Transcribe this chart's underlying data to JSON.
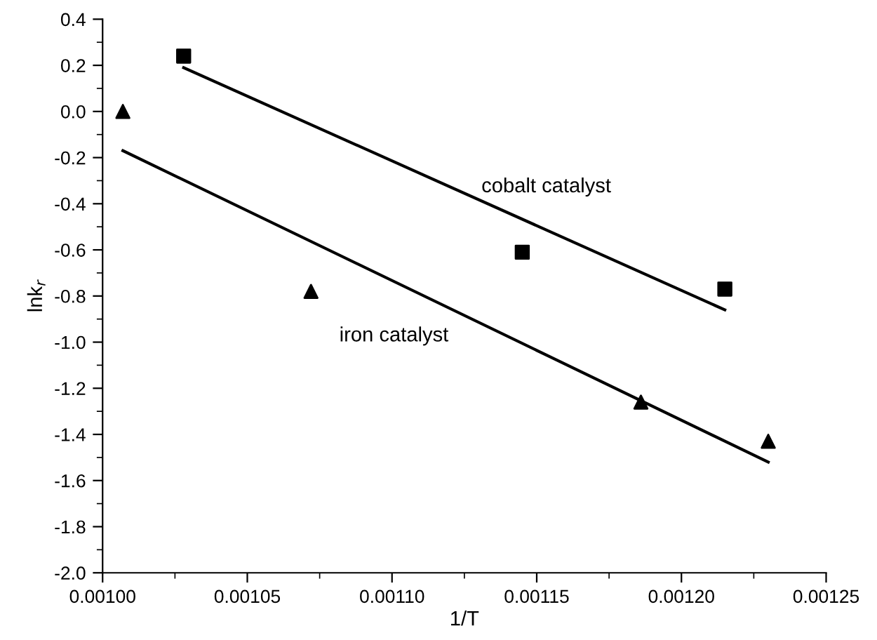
{
  "chart_data": {
    "type": "scatter",
    "xlabel": "1/T",
    "ylabel": "lnk$_{r}$",
    "xlim": [
      0.001,
      0.00125
    ],
    "xticks": [
      {
        "value": 0.001,
        "label": "0.00100"
      },
      {
        "value": 0.00105,
        "label": "0.00105"
      },
      {
        "value": 0.0011,
        "label": "0.00110"
      },
      {
        "value": 0.00115,
        "label": "0.00115"
      },
      {
        "value": 0.0012,
        "label": "0.00120"
      },
      {
        "value": 0.00125,
        "label": "0.00125"
      }
    ],
    "ylim": [
      -2.0,
      0.4
    ],
    "yticks": [
      {
        "value": 0.4,
        "label": "0.4"
      },
      {
        "value": 0.2,
        "label": "0.2"
      },
      {
        "value": 0.0,
        "label": "0.0"
      },
      {
        "value": -0.2,
        "label": "-0.2"
      },
      {
        "value": -0.4,
        "label": "-0.4"
      },
      {
        "value": -0.6,
        "label": "-0.6"
      },
      {
        "value": -0.8,
        "label": "-0.8"
      },
      {
        "value": -1.0,
        "label": "-1.0"
      },
      {
        "value": -1.2,
        "label": "-1.2"
      },
      {
        "value": -1.4,
        "label": "-1.4"
      },
      {
        "value": -1.6,
        "label": "-1.6"
      },
      {
        "value": -1.8,
        "label": "-1.8"
      },
      {
        "value": -2.0,
        "label": "-2.0"
      }
    ],
    "grid": false,
    "legend": false,
    "series": [
      {
        "marker": "square",
        "color": "#000000",
        "x": [
          0.001028,
          0.001145,
          0.001215
        ],
        "values": [
          0.24,
          -0.61,
          -0.77
        ]
      },
      {
        "marker": "triangle",
        "color": "#000000",
        "x": [
          0.001007,
          0.001072,
          0.001186,
          0.00123
        ],
        "values": [
          0.0,
          -0.78,
          -1.26,
          -1.43
        ]
      },
      {
        "type": "line",
        "name": "cobalt catalyst",
        "marker": "none",
        "line_style": "solid",
        "color": "#000000",
        "x": [
          0.001028,
          0.001215
        ],
        "values": [
          0.19,
          -0.86
        ]
      },
      {
        "type": "line",
        "name": "iron catalyst",
        "marker": "none",
        "line_style": "solid",
        "color": "#000000",
        "x": [
          0.001007,
          0.00123
        ],
        "values": [
          -0.17,
          -1.52
        ]
      }
    ]
  }
}
